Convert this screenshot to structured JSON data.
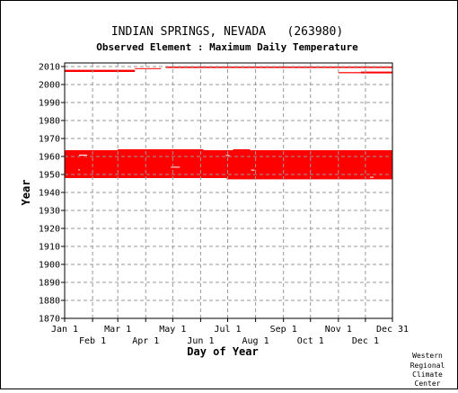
{
  "chart_data": {
    "type": "heatmap",
    "title": "INDIAN SPRINGS, NEVADA   (263980)",
    "subtitle": "Observed Element : Maximum Daily Temperature",
    "xlabel": "Day of Year",
    "ylabel": "Year",
    "xlim": [
      1,
      365
    ],
    "ylim": [
      1870,
      2012
    ],
    "y_ticks": [
      1870,
      1880,
      1890,
      1900,
      1910,
      1920,
      1930,
      1940,
      1950,
      1960,
      1970,
      1980,
      1990,
      2000,
      2010
    ],
    "x_ticks": [
      {
        "label": "Jan 1",
        "day": 1,
        "row": 1
      },
      {
        "label": "Feb 1",
        "day": 32,
        "row": 2
      },
      {
        "label": "Mar 1",
        "day": 60,
        "row": 1
      },
      {
        "label": "Apr 1",
        "day": 91,
        "row": 2
      },
      {
        "label": "May 1",
        "day": 121,
        "row": 1
      },
      {
        "label": "Jun 1",
        "day": 152,
        "row": 2
      },
      {
        "label": "Jul 1",
        "day": 182,
        "row": 1
      },
      {
        "label": "Aug 1",
        "day": 213,
        "row": 2
      },
      {
        "label": "Sep 1",
        "day": 244,
        "row": 1
      },
      {
        "label": "Oct 1",
        "day": 274,
        "row": 2
      },
      {
        "label": "Nov 1",
        "day": 305,
        "row": 1
      },
      {
        "label": "Dec 1",
        "day": 335,
        "row": 2
      },
      {
        "label": "Dec 31",
        "day": 365,
        "row": 1
      }
    ],
    "grid": true,
    "data_color": "#ff0000",
    "data_blocks": [
      {
        "day_start": 1,
        "day_end": 365,
        "year_start": 1948.0,
        "year_end": 1963.5
      },
      {
        "day_start": 60,
        "day_end": 155,
        "year_start": 1963.5,
        "year_end": 1964.0
      },
      {
        "day_start": 188,
        "day_end": 207,
        "year_start": 1963.5,
        "year_end": 1964.0
      },
      {
        "day_start": 181,
        "day_end": 365,
        "year_start": 1947.3,
        "year_end": 1948.0
      },
      {
        "day_start": 1,
        "day_end": 79,
        "year_start": 2007.0,
        "year_end": 2008.2
      },
      {
        "day_start": 79,
        "day_end": 108,
        "year_start": 2008.6,
        "year_end": 2009.1
      },
      {
        "day_start": 113,
        "day_end": 365,
        "year_start": 2009.2,
        "year_end": 2010.0
      },
      {
        "day_start": 330,
        "day_end": 365,
        "year_start": 2006.2,
        "year_end": 2007.2
      },
      {
        "day_start": 305,
        "day_end": 330,
        "year_start": 2006.3,
        "year_end": 2006.9
      }
    ],
    "gaps": [
      {
        "day_start": 17,
        "day_end": 26,
        "year_start": 1960.5,
        "year_end": 1961.0
      },
      {
        "day_start": 119,
        "day_end": 129,
        "year_start": 1953.8,
        "year_end": 1954.3
      },
      {
        "day_start": 180,
        "day_end": 184,
        "year_start": 1960.3,
        "year_end": 1960.8
      },
      {
        "day_start": 208,
        "day_end": 212,
        "year_start": 1952.2,
        "year_end": 1952.7
      },
      {
        "day_start": 340,
        "day_end": 344,
        "year_start": 1948.3,
        "year_end": 1948.7
      },
      {
        "day_start": 16,
        "day_end": 18,
        "year_start": 1952.3,
        "year_end": 1952.8
      },
      {
        "day_start": 330,
        "day_end": 332,
        "year_start": 2008.0,
        "year_end": 2008.6
      }
    ]
  },
  "credit": [
    "Western",
    "Regional",
    "Climate",
    "Center"
  ]
}
